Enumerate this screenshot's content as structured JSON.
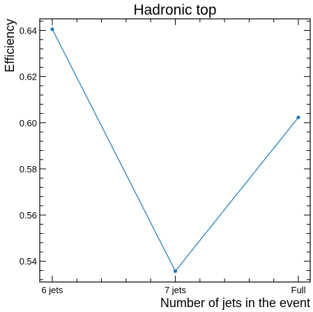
{
  "chart_data": {
    "type": "line",
    "title": "Hadronic top",
    "xlabel": "Number of jets in the event",
    "ylabel": "Efficiency",
    "categories": [
      "6 jets",
      "7 jets",
      "Full"
    ],
    "series": [
      {
        "values": [
          0.6405,
          0.5357,
          0.6023
        ]
      }
    ],
    "ylim": [
      0.531,
      0.645
    ],
    "yticks": [
      "0.54",
      "0.56",
      "0.58",
      "0.60",
      "0.62",
      "0.64"
    ],
    "grid": false,
    "color": "#1f77b4"
  }
}
